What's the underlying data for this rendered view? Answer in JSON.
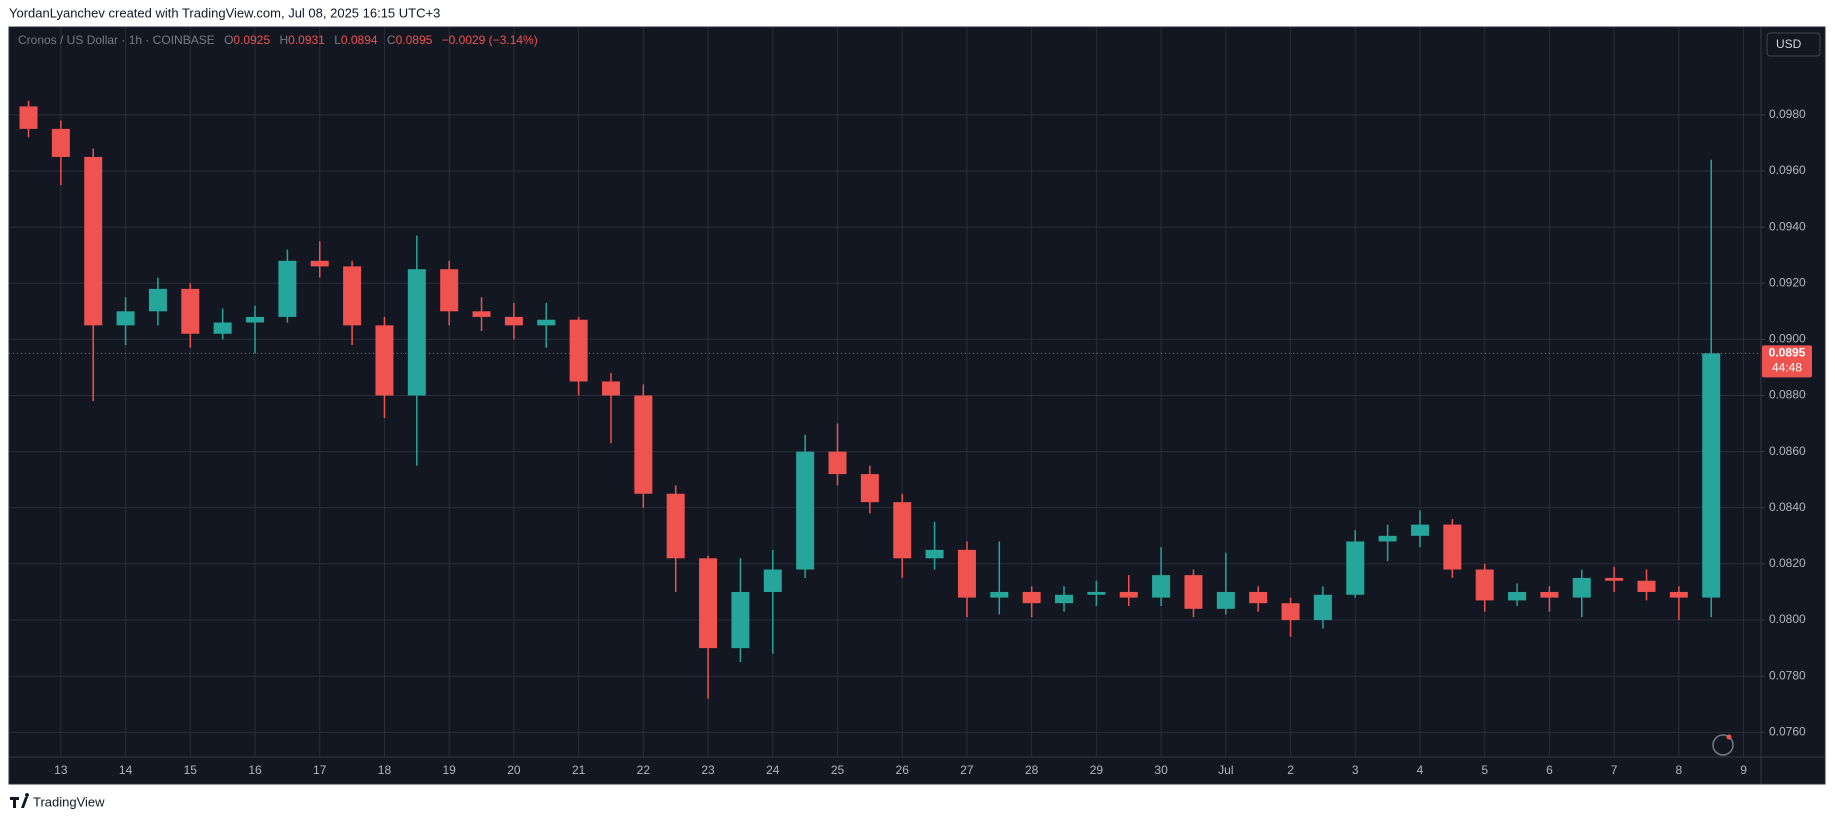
{
  "header": {
    "text": "YordanLyanchev created with TradingView.com, Jul 08, 2025 16:15 UTC+3"
  },
  "footer": {
    "brand": "TradingView"
  },
  "currency": "USD",
  "legend": {
    "symbol": "Cronos / US Dollar · 1h · COINBASE",
    "o_label": "O",
    "o": 0.0925,
    "h_label": "H",
    "h": 0.0931,
    "l_label": "L",
    "l": 0.0894,
    "c_label": "C",
    "c": 0.0895,
    "change": "−0.0029 (−3.14%)"
  },
  "chart_data": {
    "type": "candlestick",
    "up_color": "#26a69a",
    "down_color": "#ef5350",
    "grid": true,
    "categories": [
      null,
      "13",
      null,
      "14",
      null,
      "15",
      null,
      "16",
      null,
      "17",
      null,
      "18",
      null,
      "19",
      null,
      "20",
      null,
      "21",
      null,
      "22",
      null,
      "23",
      null,
      "24",
      null,
      "25",
      null,
      "26",
      null,
      "27",
      null,
      "28",
      null,
      "29",
      null,
      "30",
      null,
      "Jul",
      null,
      "2",
      null,
      "3",
      null,
      "4",
      null,
      "5",
      null,
      "6",
      null,
      "7",
      null,
      "8",
      null,
      "9"
    ],
    "open": [
      0.0983,
      0.0975,
      0.0965,
      0.0905,
      0.091,
      0.0918,
      0.0902,
      0.0906,
      0.0908,
      0.0928,
      0.0926,
      0.0905,
      0.088,
      0.0925,
      0.091,
      0.0908,
      0.0905,
      0.0907,
      0.0885,
      0.088,
      0.0845,
      0.0822,
      0.079,
      0.081,
      0.0818,
      0.086,
      0.0852,
      0.0842,
      0.0822,
      0.0825,
      0.0808,
      0.081,
      0.0806,
      0.0809,
      0.081,
      0.0808,
      0.0816,
      0.0804,
      0.081,
      0.0806,
      0.08,
      0.0809,
      0.0828,
      0.083,
      0.0834,
      0.0818,
      0.0807,
      0.081,
      0.0808,
      0.0815,
      0.0814,
      0.081,
      0.0808,
      null
    ],
    "high": [
      0.0985,
      0.0978,
      0.0968,
      0.0915,
      0.0922,
      0.092,
      0.0911,
      0.0912,
      0.0932,
      0.0935,
      0.0928,
      0.0908,
      0.0937,
      0.0928,
      0.0915,
      0.0913,
      0.0913,
      0.0908,
      0.0888,
      0.0884,
      0.0848,
      0.0823,
      0.0822,
      0.0825,
      0.0866,
      0.087,
      0.0855,
      0.0845,
      0.0835,
      0.0828,
      0.0828,
      0.0812,
      0.0812,
      0.0814,
      0.0816,
      0.0826,
      0.0818,
      0.0824,
      0.0812,
      0.0808,
      0.0812,
      0.0832,
      0.0834,
      0.0839,
      0.0836,
      0.082,
      0.0813,
      0.0812,
      0.0818,
      0.0819,
      0.0818,
      0.0812,
      0.0964,
      null
    ],
    "low": [
      0.0972,
      0.0955,
      0.0878,
      0.0898,
      0.0905,
      0.0897,
      0.09,
      0.0895,
      0.0906,
      0.0922,
      0.0898,
      0.0872,
      0.0855,
      0.0905,
      0.0903,
      0.09,
      0.0897,
      0.088,
      0.0863,
      0.084,
      0.081,
      0.0772,
      0.0785,
      0.0788,
      0.0815,
      0.0848,
      0.0838,
      0.0815,
      0.0818,
      0.0801,
      0.0802,
      0.0801,
      0.0803,
      0.0805,
      0.0805,
      0.0805,
      0.0801,
      0.0802,
      0.0803,
      0.0794,
      0.0797,
      0.0808,
      0.0821,
      0.0826,
      0.0815,
      0.0803,
      0.0805,
      0.0803,
      0.0801,
      0.081,
      0.0807,
      0.08,
      0.0801,
      null
    ],
    "close": [
      0.0975,
      0.0965,
      0.0905,
      0.091,
      0.0918,
      0.0902,
      0.0906,
      0.0908,
      0.0928,
      0.0926,
      0.0905,
      0.088,
      0.0925,
      0.091,
      0.0908,
      0.0905,
      0.0907,
      0.0885,
      0.088,
      0.0845,
      0.0822,
      0.079,
      0.081,
      0.0818,
      0.086,
      0.0852,
      0.0842,
      0.0822,
      0.0825,
      0.0808,
      0.081,
      0.0806,
      0.0809,
      0.081,
      0.0808,
      0.0816,
      0.0804,
      0.081,
      0.0806,
      0.08,
      0.0809,
      0.0828,
      0.083,
      0.0834,
      0.0818,
      0.0807,
      0.081,
      0.0808,
      0.0815,
      0.0814,
      0.081,
      0.0808,
      0.0895,
      null
    ],
    "ylim": [
      0.07512,
      0.10113
    ],
    "yticks": [
      {
        "value": 0.076,
        "label": "0.0760"
      },
      {
        "value": 0.078,
        "label": "0.0780"
      },
      {
        "value": 0.08,
        "label": "0.0800"
      },
      {
        "value": 0.082,
        "label": "0.0820"
      },
      {
        "value": 0.084,
        "label": "0.0840"
      },
      {
        "value": 0.086,
        "label": "0.0860"
      },
      {
        "value": 0.088,
        "label": "0.0880"
      },
      {
        "value": 0.09,
        "label": "0.0900"
      },
      {
        "value": 0.092,
        "label": "0.0920"
      },
      {
        "value": 0.094,
        "label": "0.0940"
      },
      {
        "value": 0.096,
        "label": "0.0960"
      },
      {
        "value": 0.098,
        "label": "0.0980"
      }
    ],
    "last_price": 0.0895,
    "countdown": "44:48"
  }
}
